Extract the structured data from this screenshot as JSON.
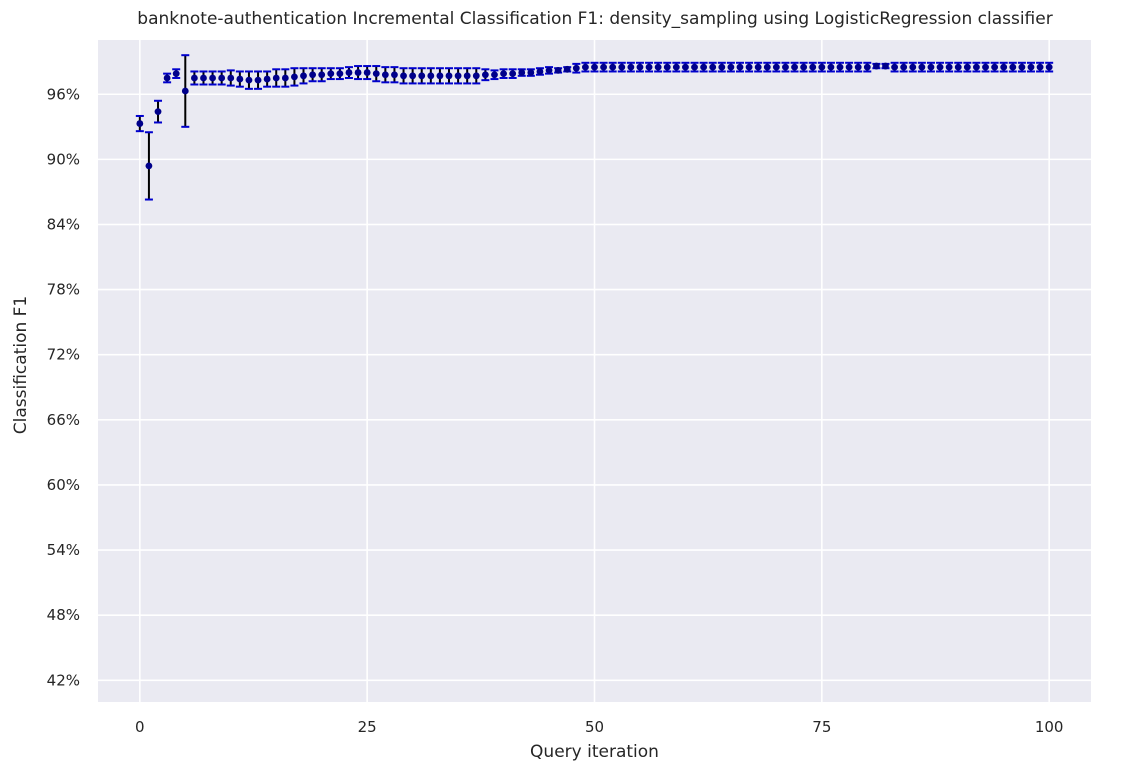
{
  "chart_data": {
    "type": "scatter",
    "title": "banknote-authentication Incremental Classification F1: density_sampling using LogisticRegression classifier",
    "xlabel": "Query iteration",
    "ylabel": "Classification F1",
    "xlim": [
      -4.6,
      104.6
    ],
    "ylim": [
      0.4,
      1.01
    ],
    "x_ticks": [
      0,
      25,
      50,
      75,
      100
    ],
    "y_ticks": [
      0.42,
      0.48,
      0.54,
      0.6,
      0.66,
      0.72,
      0.78,
      0.84,
      0.9,
      0.96
    ],
    "y_tick_labels": [
      "42%",
      "48%",
      "54%",
      "60%",
      "66%",
      "72%",
      "78%",
      "84%",
      "90%",
      "96%"
    ],
    "grid": true,
    "marker_color": "#00008b",
    "errorbar_color": "#000000",
    "cap_color": "#0000cd",
    "background_color": "#eaeaf2",
    "series": [
      {
        "x": [
          0,
          1,
          2,
          3,
          4,
          5,
          6,
          7,
          8,
          9,
          10,
          11,
          12,
          13,
          14,
          15,
          16,
          17,
          18,
          19,
          20,
          21,
          22,
          23,
          24,
          25,
          26,
          27,
          28,
          29,
          30,
          31,
          32,
          33,
          34,
          35,
          36,
          37,
          38,
          39,
          40,
          41,
          42,
          43,
          44,
          45,
          46,
          47,
          48,
          49,
          50,
          51,
          52,
          53,
          54,
          55,
          56,
          57,
          58,
          59,
          60,
          61,
          62,
          63,
          64,
          65,
          66,
          67,
          68,
          69,
          70,
          71,
          72,
          73,
          74,
          75,
          76,
          77,
          78,
          79,
          80,
          81,
          82,
          83,
          84,
          85,
          86,
          87,
          88,
          89,
          90,
          91,
          92,
          93,
          94,
          95,
          96,
          97,
          98,
          99,
          100
        ],
        "y": [
          0.933,
          0.894,
          0.944,
          0.975,
          0.979,
          0.963,
          0.975,
          0.975,
          0.975,
          0.975,
          0.975,
          0.974,
          0.973,
          0.973,
          0.974,
          0.975,
          0.975,
          0.976,
          0.977,
          0.978,
          0.978,
          0.979,
          0.979,
          0.98,
          0.98,
          0.98,
          0.979,
          0.978,
          0.978,
          0.977,
          0.977,
          0.977,
          0.977,
          0.977,
          0.977,
          0.977,
          0.977,
          0.977,
          0.978,
          0.978,
          0.979,
          0.979,
          0.98,
          0.98,
          0.981,
          0.982,
          0.982,
          0.983,
          0.984,
          0.985,
          0.985,
          0.985,
          0.985,
          0.985,
          0.985,
          0.985,
          0.985,
          0.985,
          0.985,
          0.985,
          0.985,
          0.985,
          0.985,
          0.985,
          0.985,
          0.985,
          0.985,
          0.985,
          0.985,
          0.985,
          0.985,
          0.985,
          0.985,
          0.985,
          0.985,
          0.985,
          0.985,
          0.985,
          0.985,
          0.985,
          0.985,
          0.986,
          0.986,
          0.985,
          0.985,
          0.985,
          0.985,
          0.985,
          0.985,
          0.985,
          0.985,
          0.985,
          0.985,
          0.985,
          0.985,
          0.985,
          0.985,
          0.985,
          0.985,
          0.985,
          0.985
        ],
        "err": [
          0.007,
          0.031,
          0.01,
          0.004,
          0.004,
          0.033,
          0.006,
          0.006,
          0.006,
          0.006,
          0.007,
          0.007,
          0.008,
          0.008,
          0.007,
          0.008,
          0.008,
          0.008,
          0.007,
          0.006,
          0.006,
          0.005,
          0.005,
          0.005,
          0.006,
          0.006,
          0.007,
          0.007,
          0.007,
          0.007,
          0.007,
          0.007,
          0.007,
          0.007,
          0.007,
          0.007,
          0.007,
          0.007,
          0.005,
          0.004,
          0.004,
          0.004,
          0.003,
          0.003,
          0.003,
          0.003,
          0.002,
          0.002,
          0.004,
          0.004,
          0.004,
          0.004,
          0.004,
          0.004,
          0.004,
          0.004,
          0.004,
          0.004,
          0.004,
          0.004,
          0.004,
          0.004,
          0.004,
          0.004,
          0.004,
          0.004,
          0.004,
          0.004,
          0.004,
          0.004,
          0.004,
          0.004,
          0.004,
          0.004,
          0.004,
          0.004,
          0.004,
          0.004,
          0.004,
          0.004,
          0.004,
          0.002,
          0.002,
          0.004,
          0.004,
          0.004,
          0.004,
          0.004,
          0.004,
          0.004,
          0.004,
          0.004,
          0.004,
          0.004,
          0.004,
          0.004,
          0.004,
          0.004,
          0.004,
          0.004,
          0.004
        ]
      }
    ]
  }
}
